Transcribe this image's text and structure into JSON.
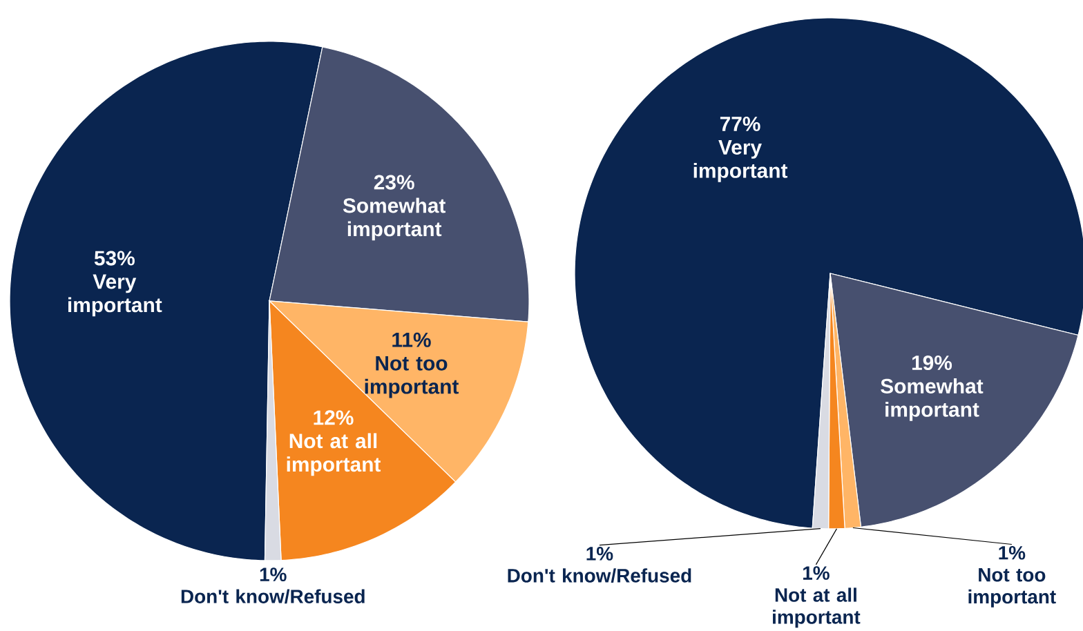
{
  "chart_data": [
    {
      "type": "pie",
      "categories": [
        "Very important",
        "Somewhat important",
        "Not too important",
        "Not at all important",
        "Don't know/Refused"
      ],
      "values": [
        53,
        23,
        11,
        12,
        1
      ],
      "colors": [
        "#0a2550",
        "#47506f",
        "#ffb566",
        "#f5861f",
        "#d9dbe3"
      ],
      "value_labels": [
        "53%",
        "23%",
        "11%",
        "12%",
        "1%"
      ]
    },
    {
      "type": "pie",
      "categories": [
        "Very important",
        "Somewhat important",
        "Not too important",
        "Not at all important",
        "Don't know/Refused"
      ],
      "values": [
        77,
        19,
        1,
        1,
        1
      ],
      "colors": [
        "#0a2550",
        "#47506f",
        "#ffb566",
        "#f5861f",
        "#d9dbe3"
      ],
      "value_labels": [
        "77%",
        "19%",
        "1%",
        "1%",
        "1%"
      ]
    }
  ]
}
